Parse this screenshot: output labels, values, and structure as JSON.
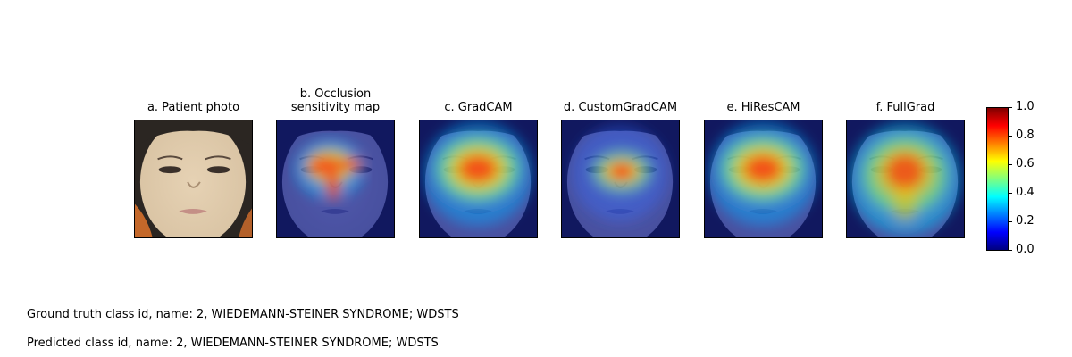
{
  "panels": [
    {
      "title_lines": [
        "a. Patient photo"
      ],
      "map": "none"
    },
    {
      "title_lines": [
        "b. Occlusion",
        "sensitivity map"
      ],
      "map": "occlusion"
    },
    {
      "title_lines": [
        "c. GradCAM"
      ],
      "map": "gradcam"
    },
    {
      "title_lines": [
        "d. CustomGradCAM"
      ],
      "map": "customgradcam"
    },
    {
      "title_lines": [
        "e. HiResCAM"
      ],
      "map": "hirescam"
    },
    {
      "title_lines": [
        "f. FullGrad"
      ],
      "map": "fullgrad"
    }
  ],
  "colorbar": {
    "colormap": "jet",
    "ticks": [
      "0.0",
      "0.2",
      "0.4",
      "0.6",
      "0.8",
      "1.0"
    ],
    "range": [
      0,
      1
    ]
  },
  "captions": {
    "ground_truth": "Ground truth class id, name: 2, WIEDEMANN-STEINER SYNDROME; WDSTS",
    "predicted": "Predicted class id, name: 2, WIEDEMANN-STEINER SYNDROME; WDSTS"
  }
}
